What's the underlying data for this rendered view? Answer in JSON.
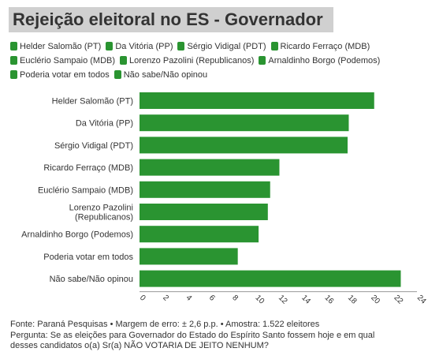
{
  "title": "Rejeição eleitoral no ES - Governador",
  "legend": [
    "Helder Salomão (PT)",
    "Da Vitória (PP)",
    "Sérgio Vidigal (PDT)",
    "Ricardo Ferraço (MDB)",
    "Euclério Sampaio (MDB)",
    "Lorenzo Pazolini (Republicanos)",
    "Arnaldinho Borgo (Podemos)",
    "Poderia votar em todos",
    "Não sabe/Não opinou"
  ],
  "colors": {
    "bar": "#2a9431",
    "title_bg": "#d0d0d0"
  },
  "chart_data": {
    "type": "bar",
    "orientation": "horizontal",
    "categories": [
      "Helder Salomão (PT)",
      "Da Vitória (PP)",
      "Sérgio Vidigal (PDT)",
      "Ricardo Ferraço (MDB)",
      "Euclério Sampaio (MDB)",
      "Lorenzo Pazolini (Republicanos)",
      "Arnaldinho Borgo (Podemos)",
      "Poderia votar em todos",
      "Não sabe/Não opinou"
    ],
    "values": [
      20.3,
      18.1,
      18.0,
      12.1,
      11.3,
      11.1,
      10.3,
      8.5,
      22.6
    ],
    "xlim": [
      0,
      24
    ],
    "xticks": [
      0,
      2,
      4,
      6,
      8,
      10,
      12,
      14,
      16,
      18,
      20,
      22,
      24
    ],
    "grid": false,
    "legend_position": "top"
  },
  "footer": {
    "source": "Fonte: Paraná Pesquisas • Margem de erro: ± 2,6 p.p. • Amostra: 1.522 eleitores",
    "question_line1": "Pergunta: Se as eleições para Governador do Estado do Espírito Santo fossem hoje e em qual",
    "question_line2": "desses candidatos o(a) Sr(a) NÃO VOTARIA DE JEITO NENHUM?"
  }
}
